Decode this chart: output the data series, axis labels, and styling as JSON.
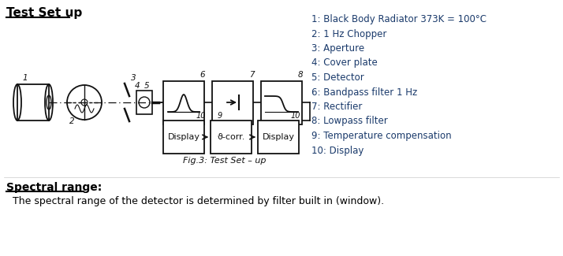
{
  "title": "Test Set up",
  "bg_color": "#ffffff",
  "legend_items": [
    "1: Black Body Radiator 373K = 100°C",
    "2: 1 Hz Chopper",
    "3: Aperture",
    "4: Cover plate",
    "5: Detector",
    "6: Bandpass filter 1 Hz",
    "7: Rectifier",
    "8: Lowpass filter",
    "9: Temperature compensation",
    "10: Display"
  ],
  "legend_color": "#1a3a6b",
  "fig_caption": "Fig.3: Test Set – up",
  "bottom_title": "Spectral range:",
  "bottom_text": "  The spectral range of the detector is determined by filter built in (window).",
  "main_color": "#000000",
  "diagram_color": "#111111"
}
